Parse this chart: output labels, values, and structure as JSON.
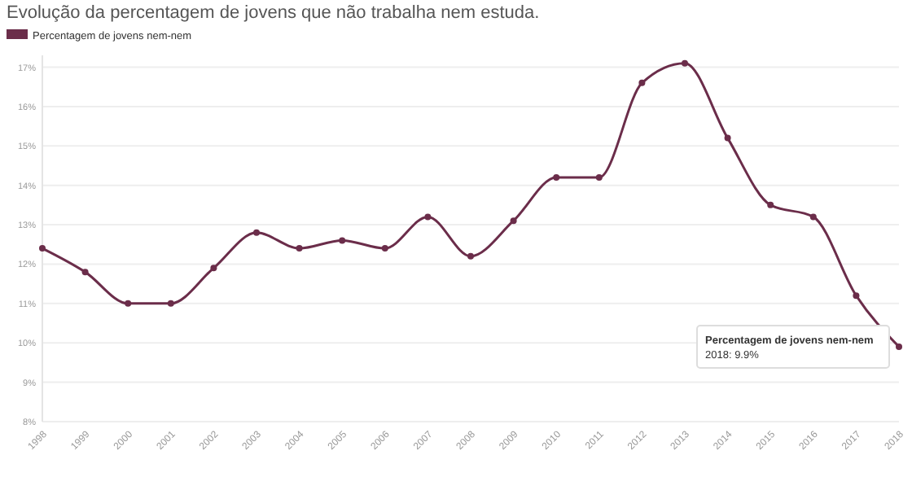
{
  "chart_data": {
    "type": "line",
    "title": "Evolução da percentagem de jovens que não trabalha nem estuda.",
    "categories": [
      "1998",
      "1999",
      "2000",
      "2001",
      "2002",
      "2003",
      "2004",
      "2005",
      "2006",
      "2007",
      "2008",
      "2009",
      "2010",
      "2011",
      "2012",
      "2013",
      "2014",
      "2015",
      "2016",
      "2017",
      "2018"
    ],
    "series": [
      {
        "name": "Percentagem de jovens nem-nem",
        "color": "#6b2d4a",
        "values": [
          12.4,
          11.8,
          11.0,
          11.0,
          11.9,
          12.8,
          12.4,
          12.6,
          12.4,
          13.2,
          12.2,
          13.1,
          14.2,
          14.2,
          16.6,
          17.1,
          15.2,
          13.5,
          13.2,
          11.2,
          9.9
        ]
      }
    ],
    "ylim": [
      8,
      17.3
    ],
    "yticks": [
      {
        "value": 8,
        "label": "8%"
      },
      {
        "value": 9,
        "label": "9%"
      },
      {
        "value": 10,
        "label": "10%"
      },
      {
        "value": 11,
        "label": "11%"
      },
      {
        "value": 12,
        "label": "12%"
      },
      {
        "value": 13,
        "label": "13%"
      },
      {
        "value": 14,
        "label": "14%"
      },
      {
        "value": 15,
        "label": "15%"
      },
      {
        "value": 16,
        "label": "16%"
      },
      {
        "value": 17,
        "label": "17%"
      }
    ],
    "grid": "y",
    "legend": "top left",
    "marker": "circle",
    "line_style": "solid",
    "annotations": [
      {
        "text": "Percentagem de jovens nem-nem\n2018: 9.9%",
        "x": "2018",
        "y": 9.9
      }
    ]
  }
}
